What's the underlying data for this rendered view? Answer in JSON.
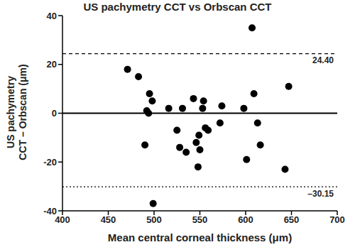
{
  "chart_data": {
    "type": "scatter",
    "title": "US pachymetry CCT vs Orbscan CCT",
    "x_label": "Mean central corneal thickness (μm)",
    "y_label": [
      "US pachymetry",
      "CCT – Orbscan (μm)"
    ],
    "x": [
      471,
      483,
      490,
      492,
      494,
      495,
      498,
      499,
      516,
      525,
      528,
      531,
      535,
      543,
      546,
      548,
      549,
      550,
      553,
      554,
      556,
      559,
      572,
      574,
      598,
      601,
      607,
      609,
      613,
      616,
      643,
      647
    ],
    "values": [
      18,
      15,
      -13,
      1,
      0,
      8,
      5,
      -37,
      2,
      -7,
      -14,
      2,
      -16,
      6,
      -12,
      -22,
      -9,
      -15,
      2,
      5,
      -6,
      -7,
      -4,
      3,
      2,
      -19,
      35,
      8,
      -4,
      -13,
      -23,
      11
    ],
    "color": "#000000",
    "marker": "circle",
    "xlim": [
      400,
      700
    ],
    "xticks": [
      400,
      450,
      500,
      550,
      600,
      650,
      700
    ],
    "ylim": [
      -40,
      40
    ],
    "yticks": [
      -40,
      -20,
      0,
      20,
      40
    ],
    "reference_lines": [
      {
        "value": 0,
        "line_style": "solid"
      },
      {
        "value": 24.4,
        "label": "24.40",
        "line_style": "dashed"
      },
      {
        "value": -30.15,
        "label": "–30.15",
        "line_style": "dotted"
      }
    ]
  }
}
